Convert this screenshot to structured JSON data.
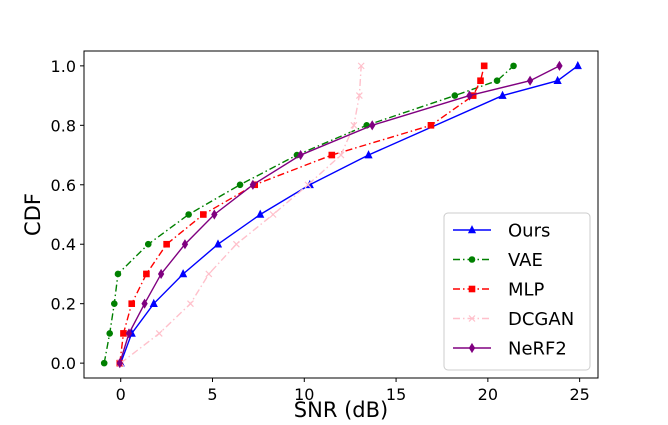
{
  "chart_data": {
    "type": "line",
    "title": "",
    "xlabel": "SNR (dB)",
    "ylabel": "CDF",
    "xlim": [
      -2,
      26
    ],
    "ylim": [
      -0.05,
      1.05
    ],
    "xticks": [
      0,
      5,
      10,
      15,
      20,
      25
    ],
    "xtick_labels": [
      "0",
      "5",
      "10",
      "15",
      "20",
      "25"
    ],
    "yticks": [
      0.0,
      0.2,
      0.4,
      0.6,
      0.8,
      1.0
    ],
    "ytick_labels": [
      "0.0",
      "0.2",
      "0.4",
      "0.6",
      "0.8",
      "1.0"
    ],
    "grid": false,
    "legend_position": "bottom-right",
    "series": [
      {
        "name": "Ours",
        "color": "#0000ff",
        "marker": "triangle",
        "line_style": "solid",
        "x": [
          0.0,
          0.6,
          1.8,
          3.4,
          5.3,
          7.6,
          10.3,
          13.5,
          20.8,
          23.8,
          24.9
        ],
        "y": [
          0.0,
          0.1,
          0.2,
          0.3,
          0.4,
          0.5,
          0.6,
          0.7,
          0.9,
          0.95,
          1.0
        ]
      },
      {
        "name": "VAE",
        "color": "#008000",
        "marker": "circle",
        "line_style": "dashdot",
        "x": [
          -0.9,
          -0.6,
          -0.35,
          -0.15,
          1.5,
          3.7,
          6.5,
          9.6,
          13.4,
          18.2,
          20.5,
          21.4
        ],
        "y": [
          0.0,
          0.1,
          0.2,
          0.3,
          0.4,
          0.5,
          0.6,
          0.7,
          0.8,
          0.9,
          0.95,
          1.0
        ]
      },
      {
        "name": "MLP",
        "color": "#ff0000",
        "marker": "square",
        "line_style": "dashdot",
        "x": [
          -0.05,
          0.15,
          0.6,
          1.4,
          2.5,
          4.5,
          7.3,
          11.5,
          16.9,
          19.2,
          19.6,
          19.8
        ],
        "y": [
          0.0,
          0.1,
          0.2,
          0.3,
          0.4,
          0.5,
          0.6,
          0.7,
          0.8,
          0.9,
          0.95,
          1.0
        ]
      },
      {
        "name": "DCGAN",
        "color": "#ffc0cb",
        "marker": "x",
        "line_style": "dashdot",
        "x": [
          0.0,
          2.1,
          3.8,
          4.8,
          6.3,
          8.3,
          10.2,
          12.0,
          12.7,
          13.0,
          13.1
        ],
        "y": [
          0.0,
          0.1,
          0.2,
          0.3,
          0.4,
          0.5,
          0.6,
          0.7,
          0.8,
          0.9,
          1.0
        ]
      },
      {
        "name": "NeRF2",
        "color": "#800080",
        "marker": "diamond",
        "line_style": "solid",
        "x": [
          -0.05,
          0.45,
          1.3,
          2.2,
          3.5,
          5.1,
          7.2,
          9.8,
          13.7,
          19.0,
          22.3,
          23.9
        ],
        "y": [
          0.0,
          0.1,
          0.2,
          0.3,
          0.4,
          0.5,
          0.6,
          0.7,
          0.8,
          0.9,
          0.95,
          1.0
        ]
      }
    ]
  }
}
